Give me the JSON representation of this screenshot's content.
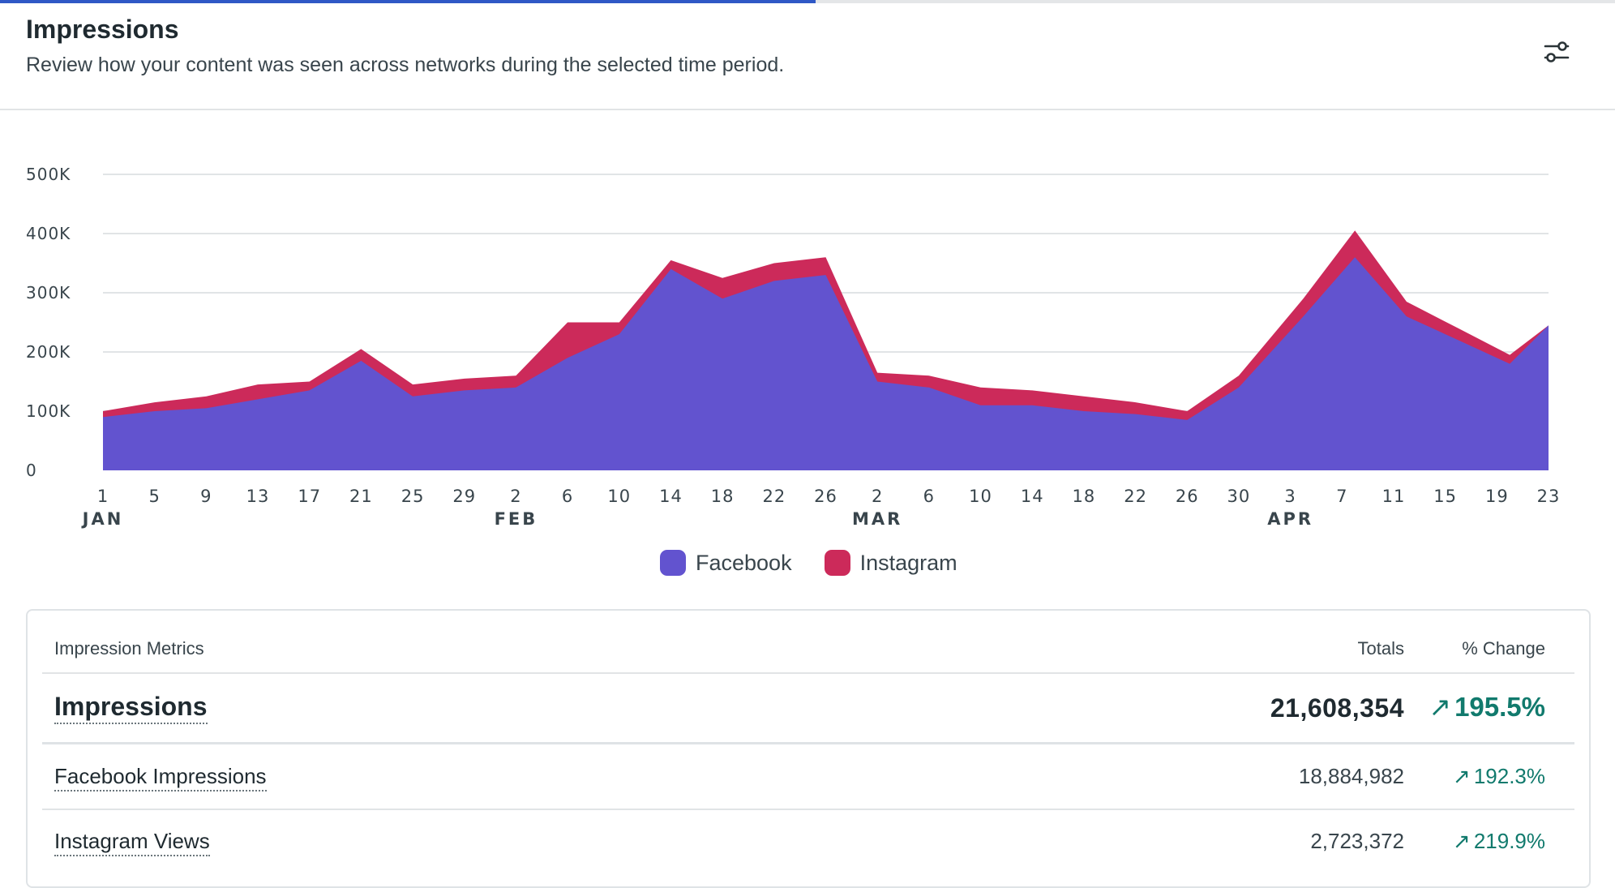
{
  "header": {
    "title": "Impressions",
    "subtitle": "Review how your content was seen across networks during the selected time period.",
    "settings_icon": "sliders-icon"
  },
  "progress": {
    "fraction": 0.505,
    "color": "#2f58c6"
  },
  "colors": {
    "facebook": "#6253cf",
    "instagram": "#cc2a5a",
    "grid": "#e1e4e6",
    "positive": "#117a6d"
  },
  "chart_data": {
    "type": "area",
    "stacked": true,
    "title": "Impressions",
    "xlabel": "",
    "ylabel": "",
    "ylim": [
      0,
      500000
    ],
    "yticks": [
      0,
      100000,
      200000,
      300000,
      400000,
      500000
    ],
    "ytick_labels": [
      "0",
      "100K",
      "200K",
      "300K",
      "400K",
      "500K"
    ],
    "grid": true,
    "legend_position": "bottom",
    "x_tick_labels": [
      "1",
      "5",
      "9",
      "13",
      "17",
      "21",
      "25",
      "29",
      "2",
      "6",
      "10",
      "14",
      "18",
      "22",
      "26",
      "2",
      "6",
      "10",
      "14",
      "18",
      "22",
      "26",
      "30",
      "3",
      "7",
      "11",
      "15",
      "19",
      "23"
    ],
    "month_labels": [
      {
        "label": "JAN",
        "tick": "1"
      },
      {
        "label": "FEB",
        "tick": "2"
      },
      {
        "label": "MAR",
        "tick": "2"
      },
      {
        "label": "APR",
        "tick": "3"
      }
    ],
    "x_start": "Jan 1",
    "x_end": "Apr 23",
    "x": [
      1,
      5,
      9,
      13,
      17,
      21,
      25,
      29,
      33,
      37,
      41,
      45,
      49,
      53,
      57,
      61,
      65,
      69,
      73,
      77,
      81,
      85,
      89,
      94,
      98,
      102,
      106,
      110,
      113
    ],
    "series": [
      {
        "name": "Facebook",
        "values": [
          90000,
          100000,
          105000,
          120000,
          135000,
          185000,
          125000,
          135000,
          140000,
          190000,
          230000,
          340000,
          290000,
          320000,
          330000,
          150000,
          140000,
          110000,
          110000,
          100000,
          95000,
          85000,
          140000,
          260000,
          360000,
          260000,
          220000,
          180000,
          245000
        ]
      },
      {
        "name": "Instagram",
        "values": [
          10000,
          15000,
          20000,
          25000,
          15000,
          20000,
          20000,
          20000,
          20000,
          60000,
          20000,
          15000,
          35000,
          30000,
          30000,
          15000,
          20000,
          30000,
          25000,
          25000,
          20000,
          15000,
          20000,
          30000,
          45000,
          25000,
          20000,
          15000,
          0
        ]
      }
    ]
  },
  "legend": [
    {
      "name": "Facebook",
      "color": "#6253cf"
    },
    {
      "name": "Instagram",
      "color": "#cc2a5a"
    }
  ],
  "table": {
    "headers": {
      "metric": "Impression Metrics",
      "totals": "Totals",
      "change": "% Change"
    },
    "rows": [
      {
        "name": "Impressions",
        "total": "21,608,354",
        "change": "195.5%",
        "arrow": "↗"
      },
      {
        "name": "Facebook Impressions",
        "total": "18,884,982",
        "change": "192.3%",
        "arrow": "↗"
      },
      {
        "name": "Instagram Views",
        "total": "2,723,372",
        "change": "219.9%",
        "arrow": "↗"
      }
    ]
  }
}
